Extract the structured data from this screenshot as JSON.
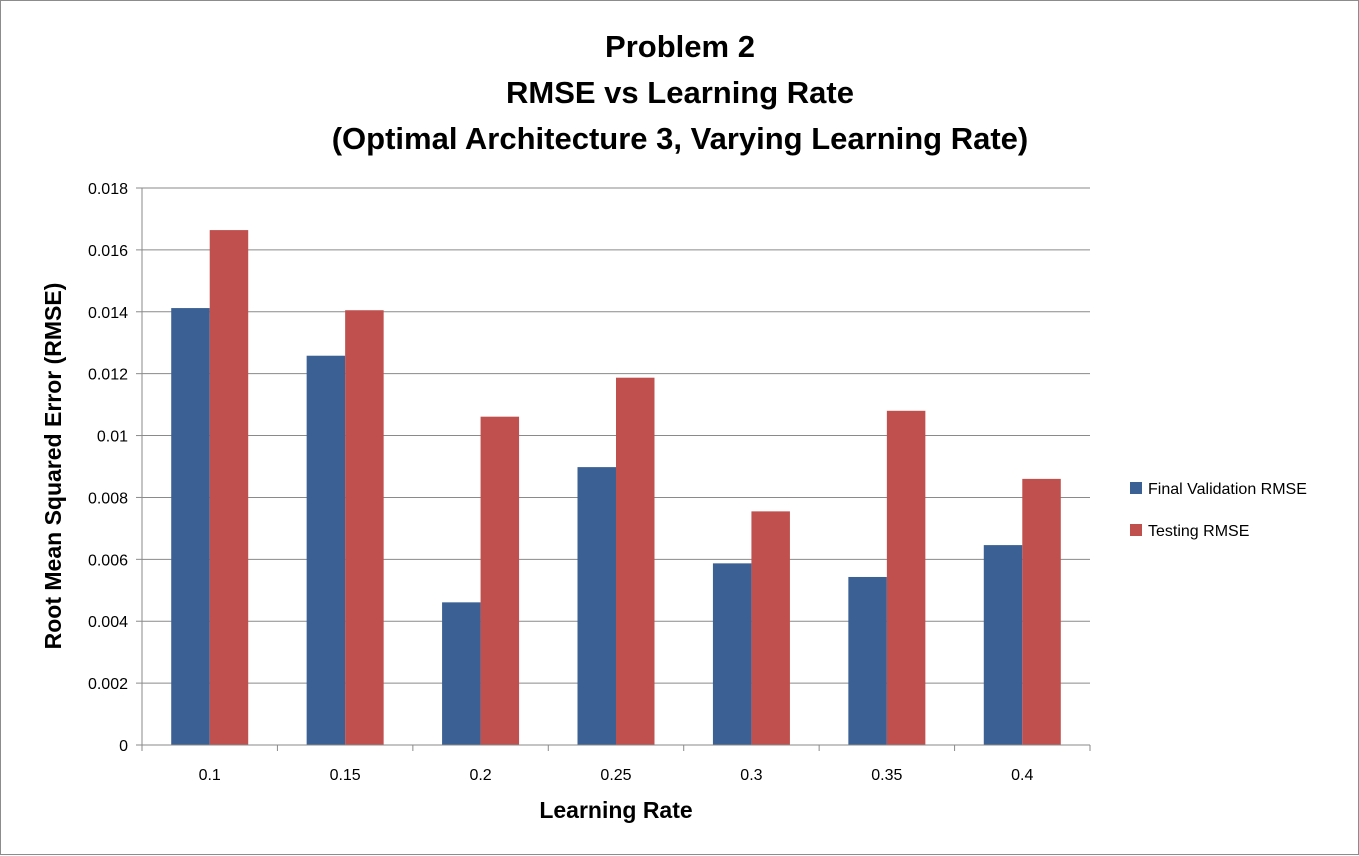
{
  "chart_data": {
    "type": "bar",
    "title_lines": [
      "Problem 2",
      "RMSE vs Learning Rate",
      "(Optimal Architecture 3, Varying Learning Rate)"
    ],
    "xlabel": "Learning Rate",
    "ylabel": "Root Mean Squared Error (RMSE)",
    "categories": [
      "0.1",
      "0.15",
      "0.2",
      "0.25",
      "0.3",
      "0.35",
      "0.4"
    ],
    "ylim": [
      0,
      0.018
    ],
    "yticks": [
      "0",
      "0.002",
      "0.004",
      "0.006",
      "0.008",
      "0.01",
      "0.012",
      "0.014",
      "0.016",
      "0.018"
    ],
    "grid": true,
    "legend_position": "right",
    "series": [
      {
        "name": "Final Validation RMSE",
        "color": "#3A6094",
        "values": [
          0.01412,
          0.01258,
          0.00461,
          0.00898,
          0.00587,
          0.00543,
          0.00646
        ]
      },
      {
        "name": "Testing RMSE",
        "color": "#C0504D",
        "values": [
          0.01664,
          0.01405,
          0.01061,
          0.01187,
          0.00755,
          0.0108,
          0.0086
        ]
      }
    ]
  }
}
